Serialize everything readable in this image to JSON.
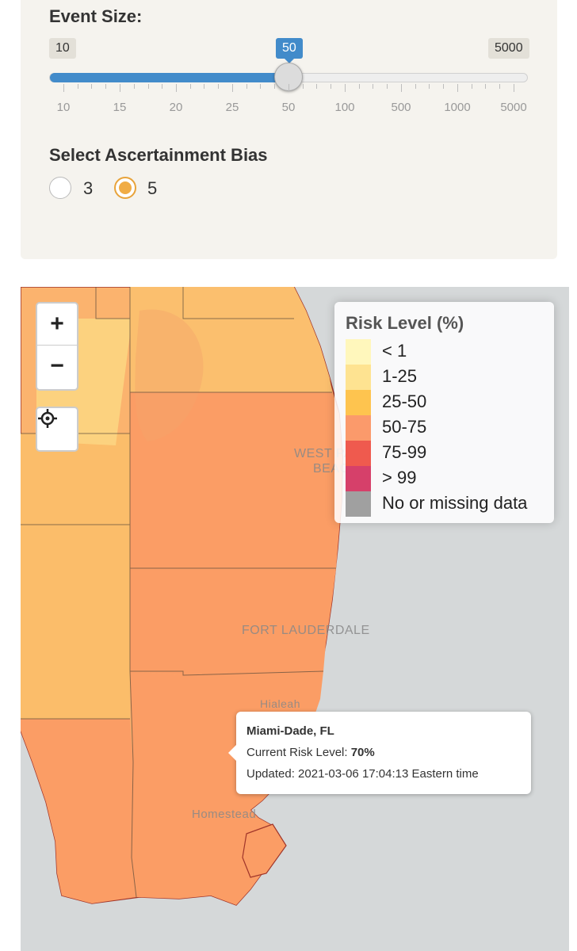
{
  "event_size": {
    "title": "Event Size:",
    "min_badge": "10",
    "current_badge": "50",
    "max_badge": "5000",
    "ticks": [
      "10",
      "15",
      "20",
      "25",
      "50",
      "100",
      "500",
      "1000",
      "5000"
    ]
  },
  "bias": {
    "title": "Select Ascertainment Bias",
    "options": [
      {
        "label": "3",
        "selected": false
      },
      {
        "label": "5",
        "selected": true
      }
    ]
  },
  "map_controls": {
    "zoom_in": "+",
    "zoom_out": "−",
    "locate_icon": "crosshair-locate-icon"
  },
  "legend": {
    "title": "Risk Level (%)",
    "items": [
      {
        "label": "< 1",
        "color": "#fff7bc"
      },
      {
        "label": "1-25",
        "color": "#fee391"
      },
      {
        "label": "25-50",
        "color": "#fec44f"
      },
      {
        "label": "50-75",
        "color": "#fb9a6b"
      },
      {
        "label": "75-99",
        "color": "#ef5a4e"
      },
      {
        "label": "> 99",
        "color": "#d6406a"
      },
      {
        "label": "No or missing data",
        "color": "#a0a0a0"
      }
    ]
  },
  "map_labels": {
    "west_palm": "WEST PALM",
    "beach": "BEACH",
    "fort_lauderdale": "FORT LAUDERDALE",
    "hialeah": "Hialeah",
    "homestead": "Homestead"
  },
  "popup": {
    "county": "Miami-Dade, FL",
    "risk_label": "Current Risk Level:",
    "risk_value": "70%",
    "updated": "Updated: 2021-03-06 17:04:13 Eastern time"
  }
}
